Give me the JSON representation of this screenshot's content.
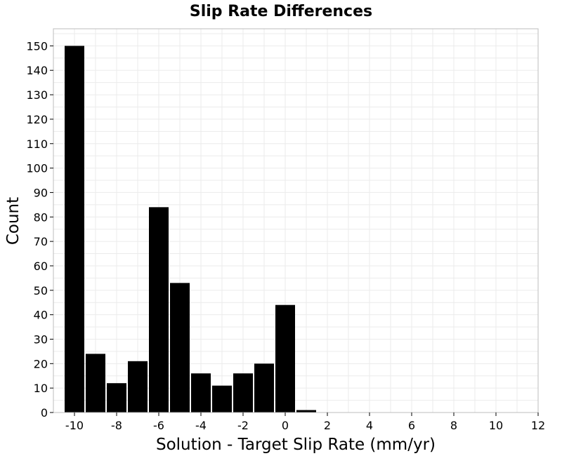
{
  "chart_data": {
    "type": "bar",
    "title": "Slip Rate Differences",
    "xlabel": "Solution - Target Slip Rate (mm/yr)",
    "ylabel": "Count",
    "xlim": [
      -11,
      12
    ],
    "ylim": [
      0,
      157
    ],
    "grid": true,
    "bar_color": "#000000",
    "x_ticks": [
      -10,
      -8,
      -6,
      -4,
      -2,
      0,
      2,
      4,
      6,
      8,
      10,
      12
    ],
    "y_ticks": [
      0,
      10,
      20,
      30,
      40,
      50,
      60,
      70,
      80,
      90,
      100,
      110,
      120,
      130,
      140,
      150
    ],
    "bin_width": 1,
    "bins": [
      {
        "x": -10,
        "count": 150
      },
      {
        "x": -9,
        "count": 24
      },
      {
        "x": -8,
        "count": 12
      },
      {
        "x": -7,
        "count": 21
      },
      {
        "x": -6,
        "count": 84
      },
      {
        "x": -5,
        "count": 53
      },
      {
        "x": -4,
        "count": 16
      },
      {
        "x": -3,
        "count": 11
      },
      {
        "x": -2,
        "count": 16
      },
      {
        "x": -1,
        "count": 20
      },
      {
        "x": 0,
        "count": 44
      },
      {
        "x": 1,
        "count": 1
      }
    ]
  }
}
